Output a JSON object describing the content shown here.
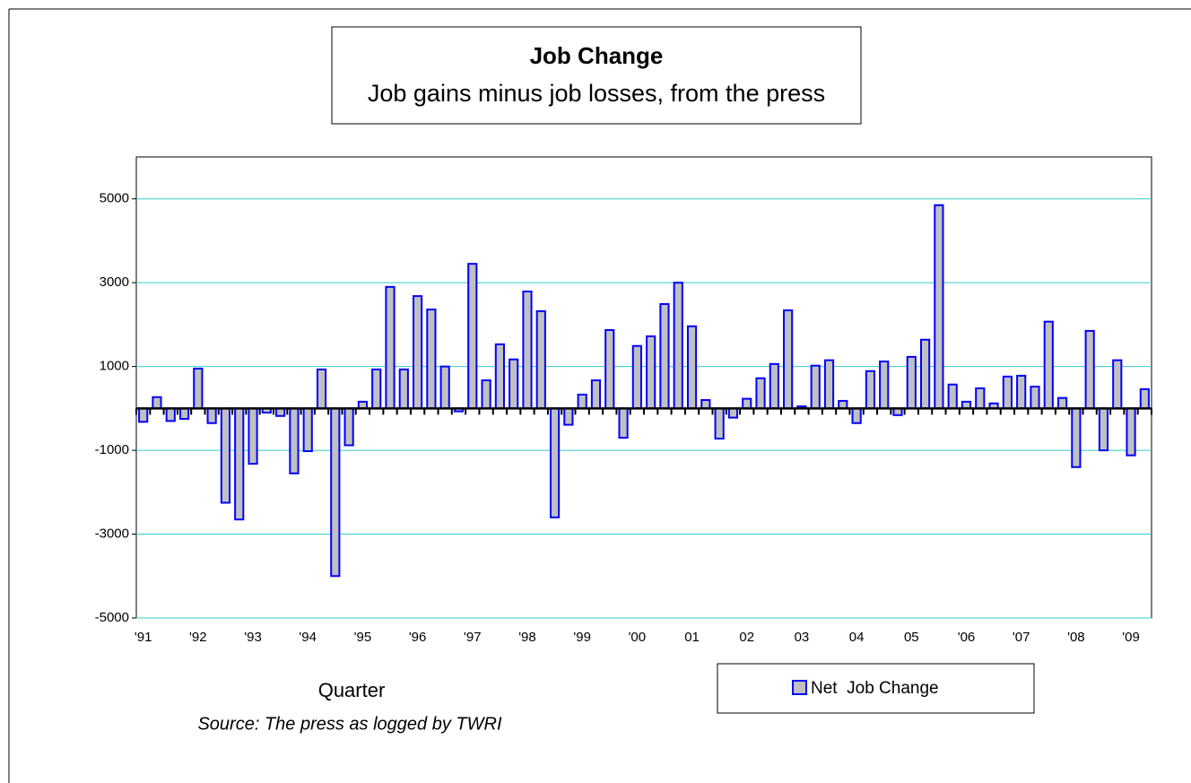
{
  "chart_data": {
    "type": "bar",
    "title": "Job Change",
    "subtitle": "Job gains minus job losses, from the press",
    "xlabel": "Quarter",
    "source": "Source: The press as logged by TWRI",
    "categories": [
      "'91",
      null,
      null,
      null,
      "'92",
      null,
      null,
      null,
      "'93",
      null,
      null,
      null,
      "'94",
      null,
      null,
      null,
      "'95",
      null,
      null,
      null,
      "'96",
      null,
      null,
      null,
      "'97",
      null,
      null,
      null,
      "'98",
      null,
      null,
      null,
      "'99",
      null,
      null,
      null,
      "'00",
      null,
      null,
      null,
      "01",
      null,
      null,
      null,
      "02",
      null,
      null,
      null,
      "03",
      null,
      null,
      null,
      "04",
      null,
      null,
      null,
      "05",
      null,
      null,
      null,
      "'06",
      null,
      null,
      null,
      "'07",
      null,
      null,
      null,
      "'08",
      null,
      null,
      null,
      "'09",
      null
    ],
    "series": [
      {
        "name": "Net  Job Change",
        "color": "#c0c0c0",
        "edgecolor": "#0000ff",
        "values": [
          -320,
          270,
          -300,
          -250,
          950,
          -350,
          -2250,
          -2650,
          -1320,
          -100,
          -180,
          -1550,
          -1020,
          930,
          -4000,
          -880,
          160,
          930,
          2900,
          930,
          2680,
          2360,
          1000,
          -70,
          3450,
          670,
          1530,
          1170,
          2790,
          2320,
          -2600,
          -390,
          330,
          670,
          1870,
          -700,
          1490,
          1720,
          2490,
          3000,
          1960,
          200,
          -720,
          -220,
          230,
          720,
          1060,
          2340,
          50,
          1020,
          1150,
          180,
          -350,
          890,
          1120,
          -160,
          1230,
          1640,
          4850,
          570,
          160,
          480,
          120,
          760,
          780,
          520,
          2070,
          250,
          -1400,
          1850,
          -1000,
          1150,
          -1120,
          460
        ]
      }
    ],
    "ylim": [
      -5000,
      6000
    ],
    "yticks": [
      -5000,
      -3000,
      -1000,
      1000,
      3000,
      5000
    ],
    "grid": true,
    "gridcolor": "#33cccc"
  }
}
